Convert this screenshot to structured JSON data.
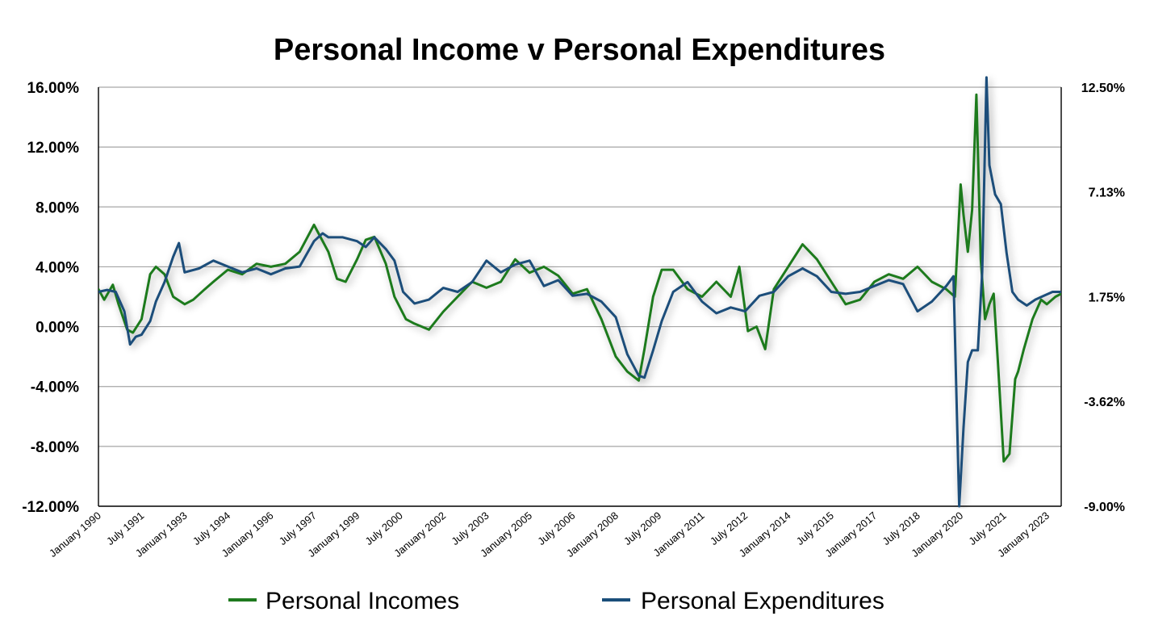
{
  "chart_data": {
    "type": "line",
    "title": "Personal Income v Personal Expenditures",
    "xlabel": "",
    "ylabel": "",
    "x_range": [
      1990.0,
      2023.5
    ],
    "ylim": [
      -12,
      16
    ],
    "y_ticks": [
      "16.00%",
      "12.00%",
      "8.00%",
      "4.00%",
      "0.00%",
      "-4.00%",
      "-8.00%",
      "-12.00%"
    ],
    "y_tick_values": [
      16,
      12,
      8,
      4,
      0,
      -4,
      -8,
      -12
    ],
    "y2lim": [
      -9.0,
      12.5
    ],
    "y2_ticks": [
      "12.50%",
      "7.13%",
      "1.75%",
      "-3.62%",
      "-9.00%"
    ],
    "y2_tick_values": [
      12.5,
      7.13,
      1.75,
      -3.62,
      -9.0
    ],
    "x_ticks": [
      "January 1990",
      "July 1991",
      "January 1993",
      "July 1994",
      "January 1996",
      "July 1997",
      "January 1999",
      "July 2000",
      "January 2002",
      "July 2003",
      "January 2005",
      "July 2006",
      "January 2008",
      "July 2009",
      "January 2011",
      "July 2012",
      "January 2014",
      "July 2015",
      "January 2017",
      "July 2018",
      "January 2020",
      "July 2021",
      "January 2023"
    ],
    "x_tick_values": [
      1990.0,
      1991.5,
      1993.0,
      1994.5,
      1996.0,
      1997.5,
      1999.0,
      2000.5,
      2002.0,
      2003.5,
      2005.0,
      2006.5,
      2008.0,
      2009.5,
      2011.0,
      2012.5,
      2014.0,
      2015.5,
      2017.0,
      2018.5,
      2020.0,
      2021.5,
      2023.0
    ],
    "grid": true,
    "legend_position": "bottom",
    "series": [
      {
        "name": "Personal Incomes",
        "color": "#1f7a1f",
        "axis": "left",
        "x": [
          1990.0,
          1990.2,
          1990.5,
          1990.7,
          1991.0,
          1991.2,
          1991.5,
          1991.8,
          1992.0,
          1992.3,
          1992.6,
          1993.0,
          1993.3,
          1993.7,
          1994.0,
          1994.5,
          1995.0,
          1995.5,
          1996.0,
          1996.5,
          1997.0,
          1997.5,
          1998.0,
          1998.3,
          1998.6,
          1999.0,
          1999.3,
          1999.6,
          2000.0,
          2000.3,
          2000.7,
          2001.0,
          2001.5,
          2002.0,
          2002.5,
          2003.0,
          2003.5,
          2004.0,
          2004.5,
          2005.0,
          2005.5,
          2006.0,
          2006.5,
          2007.0,
          2007.5,
          2008.0,
          2008.4,
          2008.8,
          2009.0,
          2009.3,
          2009.6,
          2010.0,
          2010.5,
          2011.0,
          2011.5,
          2012.0,
          2012.3,
          2012.6,
          2012.9,
          2013.2,
          2013.5,
          2014.0,
          2014.5,
          2015.0,
          2015.5,
          2016.0,
          2016.5,
          2017.0,
          2017.5,
          2018.0,
          2018.5,
          2019.0,
          2019.5,
          2019.8,
          2020.0,
          2020.1,
          2020.25,
          2020.4,
          2020.55,
          2020.7,
          2020.85,
          2021.0,
          2021.15,
          2021.3,
          2021.5,
          2021.7,
          2021.9,
          2022.0,
          2022.2,
          2022.5,
          2022.8,
          2023.0,
          2023.3,
          2023.5
        ],
        "y": [
          2.5,
          1.8,
          2.8,
          1.5,
          -0.2,
          -0.4,
          0.5,
          3.5,
          4.0,
          3.5,
          2.0,
          1.5,
          1.8,
          2.5,
          3.0,
          3.8,
          3.5,
          4.2,
          4.0,
          4.2,
          5.0,
          6.8,
          5.0,
          3.2,
          3.0,
          4.5,
          5.8,
          6.0,
          4.2,
          2.0,
          0.5,
          0.2,
          -0.2,
          1.0,
          2.0,
          3.0,
          2.6,
          3.0,
          4.5,
          3.6,
          4.0,
          3.4,
          2.2,
          2.5,
          0.5,
          -2.0,
          -3.0,
          -3.6,
          -1.5,
          2.0,
          3.8,
          3.8,
          2.5,
          2.0,
          3.0,
          2.0,
          4.0,
          -0.3,
          0.0,
          -1.5,
          2.5,
          4.0,
          5.5,
          4.5,
          3.0,
          1.5,
          1.8,
          3.0,
          3.5,
          3.2,
          4.0,
          3.0,
          2.5,
          2.0,
          9.5,
          7.5,
          5.0,
          7.8,
          15.5,
          4.5,
          0.5,
          1.5,
          2.2,
          -2.5,
          -9.0,
          -8.5,
          -3.5,
          -3.0,
          -1.5,
          0.5,
          1.8,
          1.5,
          2.0,
          2.2
        ]
      },
      {
        "name": "Personal Expenditures",
        "color": "#1a4e7a",
        "axis": "right",
        "x": [
          1990.0,
          1990.3,
          1990.6,
          1990.9,
          1991.1,
          1991.3,
          1991.5,
          1991.8,
          1992.0,
          1992.3,
          1992.6,
          1992.8,
          1993.0,
          1993.5,
          1994.0,
          1994.5,
          1995.0,
          1995.5,
          1996.0,
          1996.5,
          1997.0,
          1997.5,
          1997.8,
          1998.0,
          1998.5,
          1999.0,
          1999.3,
          1999.6,
          2000.0,
          2000.3,
          2000.6,
          2001.0,
          2001.5,
          2002.0,
          2002.5,
          2003.0,
          2003.5,
          2004.0,
          2004.5,
          2005.0,
          2005.5,
          2006.0,
          2006.5,
          2007.0,
          2007.5,
          2008.0,
          2008.4,
          2008.8,
          2009.0,
          2009.3,
          2009.6,
          2010.0,
          2010.5,
          2011.0,
          2011.5,
          2012.0,
          2012.5,
          2013.0,
          2013.5,
          2014.0,
          2014.5,
          2015.0,
          2015.5,
          2016.0,
          2016.5,
          2017.0,
          2017.5,
          2018.0,
          2018.5,
          2019.0,
          2019.5,
          2019.75,
          2019.95,
          2020.1,
          2020.25,
          2020.4,
          2020.6,
          2020.75,
          2020.9,
          2021.0,
          2021.2,
          2021.4,
          2021.6,
          2021.8,
          2022.0,
          2022.3,
          2022.6,
          2022.9,
          2023.2,
          2023.5
        ],
        "y": [
          2.0,
          2.1,
          2.0,
          1.0,
          -0.7,
          -0.3,
          -0.2,
          0.5,
          1.5,
          2.5,
          3.8,
          4.5,
          3.0,
          3.2,
          3.6,
          3.3,
          3.0,
          3.2,
          2.9,
          3.2,
          3.3,
          4.6,
          5.0,
          4.8,
          4.8,
          4.6,
          4.3,
          4.8,
          4.2,
          3.6,
          2.0,
          1.4,
          1.6,
          2.2,
          2.0,
          2.5,
          3.6,
          3.0,
          3.4,
          3.6,
          2.3,
          2.6,
          1.8,
          1.9,
          1.5,
          0.7,
          -1.2,
          -2.3,
          -2.4,
          -1.0,
          0.5,
          2.0,
          2.5,
          1.5,
          0.9,
          1.2,
          1.0,
          1.8,
          2.0,
          2.8,
          3.2,
          2.8,
          2.0,
          1.9,
          2.0,
          2.3,
          2.6,
          2.4,
          1.0,
          1.5,
          2.3,
          2.8,
          -9.0,
          -5.0,
          -1.6,
          -1.0,
          -1.0,
          3.0,
          13.0,
          8.5,
          7.0,
          6.5,
          4.0,
          2.0,
          1.6,
          1.3,
          1.6,
          1.8,
          2.0,
          2.0
        ]
      }
    ],
    "axis_color": "#000000",
    "grid_color": "#a6a6a6"
  }
}
